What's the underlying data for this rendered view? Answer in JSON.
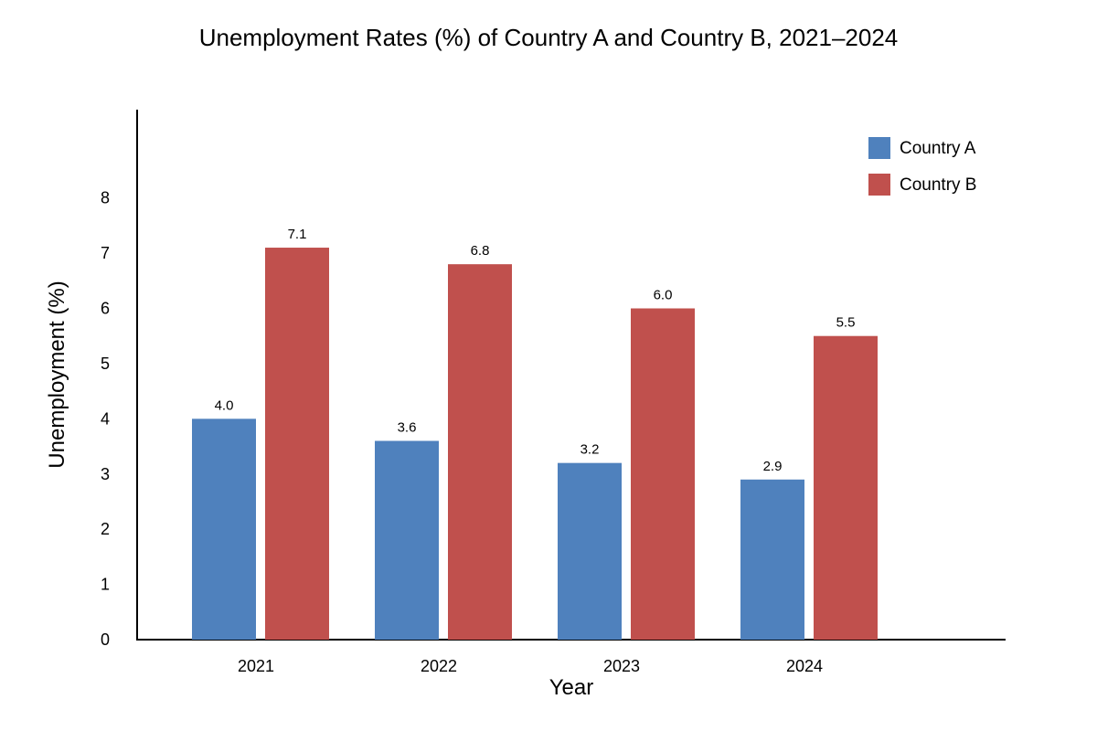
{
  "chart_data": {
    "type": "bar",
    "title": "Unemployment Rates (%) of Country A and Country B, 2021–2024",
    "xlabel": "Year",
    "ylabel": "Unemployment (%)",
    "categories": [
      "2021",
      "2022",
      "2023",
      "2024"
    ],
    "series": [
      {
        "name": "Country A",
        "values": [
          4.0,
          3.6,
          3.2,
          2.9
        ],
        "labels": [
          "4.0",
          "3.6",
          "3.2",
          "2.9"
        ],
        "color": "#4f81bd"
      },
      {
        "name": "Country B",
        "values": [
          7.1,
          6.8,
          6.0,
          5.5
        ],
        "labels": [
          "7.1",
          "6.8",
          "6.0",
          "5.5"
        ],
        "color": "#c0504d"
      }
    ],
    "y_ticks": [
      "0",
      "1",
      "2",
      "3",
      "4",
      "5",
      "6",
      "7",
      "8"
    ],
    "ylim": [
      0,
      9.6
    ],
    "grid": false,
    "legend_position": "top-right"
  }
}
